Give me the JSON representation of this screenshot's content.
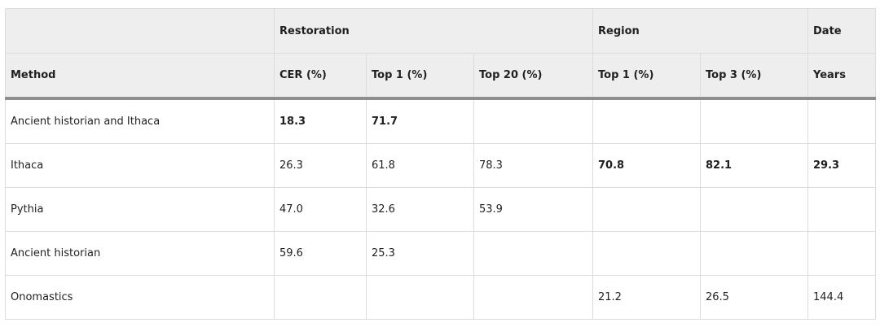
{
  "header": {
    "groups": {
      "method": "",
      "restoration": "Restoration",
      "region": "Region",
      "date": "Date"
    },
    "columns": [
      "Method",
      "CER (%)",
      "Top 1 (%)",
      "Top 20 (%)",
      "Top 1 (%)",
      "Top 3 (%)",
      "Years"
    ]
  },
  "rows": [
    {
      "method": "Ancient historian and Ithaca",
      "cer": "18.3",
      "restoration_top1": "71.7",
      "restoration_top20": "",
      "region_top1": "",
      "region_top3": "",
      "years": ""
    },
    {
      "method": "Ithaca",
      "cer": "26.3",
      "restoration_top1": "61.8",
      "restoration_top20": "78.3",
      "region_top1": "70.8",
      "region_top3": "82.1",
      "years": "29.3"
    },
    {
      "method": "Pythia",
      "cer": "47.0",
      "restoration_top1": "32.6",
      "restoration_top20": "53.9",
      "region_top1": "",
      "region_top3": "",
      "years": ""
    },
    {
      "method": "Ancient historian",
      "cer": "59.6",
      "restoration_top1": "25.3",
      "restoration_top20": "",
      "region_top1": "",
      "region_top3": "",
      "years": ""
    },
    {
      "method": "Onomastics",
      "cer": "",
      "restoration_top1": "",
      "restoration_top20": "",
      "region_top1": "21.2",
      "region_top3": "26.5",
      "years": "144.4"
    }
  ]
}
